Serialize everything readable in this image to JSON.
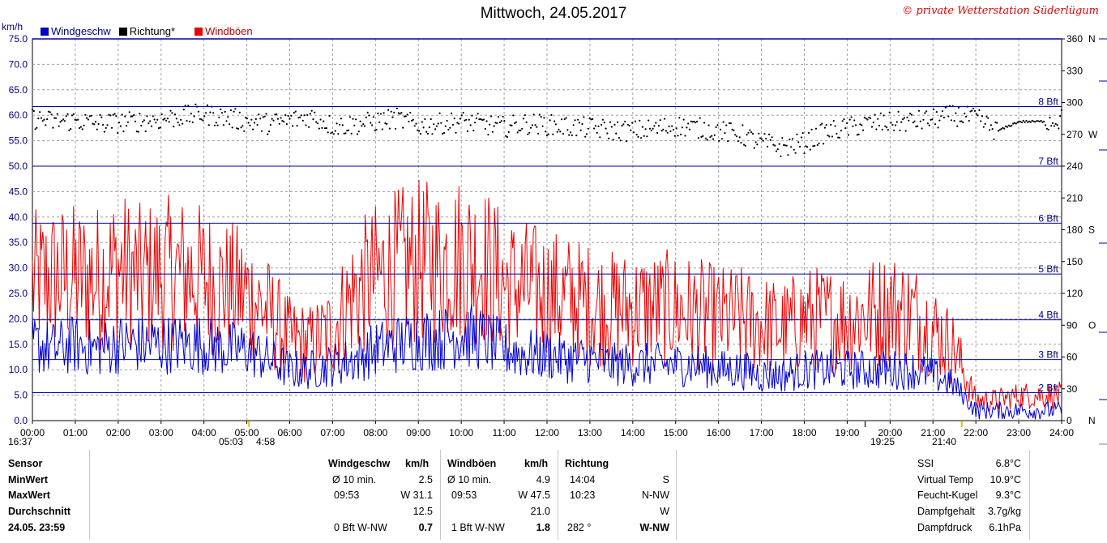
{
  "header": {
    "title": "Mittwoch, 24.05.2017",
    "copyright": "© private Wetterstation Süderlügum",
    "unit_label": "km/h"
  },
  "legend": {
    "wind": "Windgeschw",
    "direction": "Richtung*",
    "gusts": "Windböen"
  },
  "colors": {
    "wind": "#0000cc",
    "gusts": "#ee0000",
    "direction": "#000000",
    "grid_line": "#0000aa",
    "grid_dash": "#a0a0a0"
  },
  "chart_data": {
    "type": "line",
    "xlabel": "",
    "ylabel": "km/h",
    "ylim": [
      0,
      75
    ],
    "y_ticks": [
      "0.0",
      "5.0",
      "10.0",
      "15.0",
      "20.0",
      "25.0",
      "30.0",
      "35.0",
      "40.0",
      "45.0",
      "50.0",
      "55.0",
      "60.0",
      "65.0",
      "70.0",
      "75.0"
    ],
    "x_ticks": [
      "00:00",
      "01:00",
      "02:00",
      "03:00",
      "04:00",
      "05:00",
      "06:00",
      "07:00",
      "08:00",
      "09:00",
      "10:00",
      "11:00",
      "12:00",
      "13:00",
      "14:00",
      "15:00",
      "16:00",
      "17:00",
      "18:00",
      "19:00",
      "20:00",
      "21:00",
      "22:00",
      "23:00",
      "24:00"
    ],
    "right_axis": {
      "ylim": [
        0,
        360
      ],
      "ticks": [
        {
          "value": 0,
          "label": "0"
        },
        {
          "value": 30,
          "label": "30"
        },
        {
          "value": 60,
          "label": "60"
        },
        {
          "value": 90,
          "label": "90"
        },
        {
          "value": 120,
          "label": "120"
        },
        {
          "value": 150,
          "label": "150"
        },
        {
          "value": 180,
          "label": "180"
        },
        {
          "value": 210,
          "label": "210"
        },
        {
          "value": 240,
          "label": "240"
        },
        {
          "value": 270,
          "label": "270"
        },
        {
          "value": 300,
          "label": "300"
        },
        {
          "value": 330,
          "label": "330"
        },
        {
          "value": 360,
          "label": "360"
        }
      ],
      "compass": [
        {
          "value": 0,
          "label": "N"
        },
        {
          "value": 90,
          "label": "O"
        },
        {
          "value": 180,
          "label": "S"
        },
        {
          "value": 270,
          "label": "W"
        },
        {
          "value": 360,
          "label": "N"
        }
      ]
    },
    "beaufort_lines": [
      {
        "label": "2 Bft",
        "kmh": 5.5
      },
      {
        "label": "3 Bft",
        "kmh": 12.0
      },
      {
        "label": "4 Bft",
        "kmh": 19.8
      },
      {
        "label": "5 Bft",
        "kmh": 28.8
      },
      {
        "label": "6 Bft",
        "kmh": 38.8
      },
      {
        "label": "7 Bft",
        "kmh": 50.0
      },
      {
        "label": "8 Bft",
        "kmh": 61.7
      }
    ],
    "series": [
      {
        "name": "Windgeschw",
        "x": [
          0,
          0.5,
          1,
          1.5,
          2,
          2.5,
          3,
          3.5,
          4,
          4.5,
          5,
          5.5,
          6,
          6.5,
          7,
          7.5,
          8,
          8.5,
          9,
          9.5,
          10,
          10.5,
          11,
          11.5,
          12,
          12.5,
          13,
          13.5,
          14,
          14.5,
          15,
          15.5,
          16,
          16.5,
          17,
          17.5,
          18,
          18.5,
          19,
          19.5,
          20,
          20.5,
          21,
          21.5,
          22,
          22.5,
          23,
          23.5,
          24
        ],
        "values": [
          15,
          14,
          15,
          14,
          15,
          15,
          15,
          15,
          15,
          14,
          14,
          12,
          10,
          10,
          11,
          12,
          14,
          15,
          16,
          16,
          17,
          16,
          14,
          13,
          13,
          12,
          12,
          11,
          11,
          11,
          11,
          11,
          10,
          10,
          9,
          9,
          10,
          10,
          10,
          10,
          10,
          10,
          9,
          7,
          2,
          2,
          2,
          2,
          2
        ]
      },
      {
        "name": "Windböen",
        "x": [
          0,
          0.5,
          1,
          1.5,
          2,
          2.5,
          3,
          3.5,
          4,
          4.5,
          5,
          5.5,
          6,
          6.5,
          7,
          7.5,
          8,
          8.5,
          9,
          9.5,
          10,
          10.5,
          11,
          11.5,
          12,
          12.5,
          13,
          13.5,
          14,
          14.5,
          15,
          15.5,
          16,
          16.5,
          17,
          17.5,
          18,
          18.5,
          19,
          19.5,
          20,
          20.5,
          21,
          21.5,
          22,
          22.5,
          23,
          23.5,
          24
        ],
        "values": [
          27,
          28,
          28,
          28,
          30,
          28,
          29,
          29,
          28,
          26,
          25,
          21,
          16,
          15,
          18,
          25,
          28,
          30,
          31,
          31,
          32,
          31,
          27,
          26,
          25,
          24,
          23,
          22,
          22,
          22,
          22,
          21,
          20,
          20,
          19,
          18,
          20,
          20,
          20,
          21,
          22,
          21,
          18,
          14,
          4,
          4,
          5,
          5,
          5
        ]
      },
      {
        "name": "Richtung*",
        "axis": "right",
        "x": [
          0,
          0.5,
          1,
          1.5,
          2,
          2.5,
          3,
          3.5,
          4,
          4.5,
          5,
          5.5,
          6,
          6.5,
          7,
          7.5,
          8,
          8.5,
          9,
          9.5,
          10,
          10.5,
          11,
          11.5,
          12,
          12.5,
          13,
          13.5,
          14,
          14.5,
          15,
          15.5,
          16,
          16.5,
          17,
          17.5,
          18,
          18.5,
          19,
          19.5,
          20,
          20.5,
          21,
          21.5,
          22,
          22.5,
          23,
          23.5,
          24
        ],
        "values": [
          285,
          282,
          283,
          280,
          281,
          282,
          284,
          287,
          289,
          286,
          282,
          280,
          283,
          287,
          278,
          279,
          282,
          285,
          278,
          280,
          282,
          279,
          277,
          280,
          279,
          277,
          276,
          274,
          273,
          275,
          278,
          276,
          273,
          270,
          262,
          258,
          262,
          272,
          276,
          280,
          281,
          282,
          284,
          288,
          285,
          273,
          282,
          282,
          284
        ]
      }
    ],
    "annotations": [
      {
        "text": "16:37"
      },
      {
        "text": "05:03"
      },
      {
        "text": "4:58"
      },
      {
        "text": "19:25"
      },
      {
        "text": "21:40"
      }
    ]
  },
  "stats": {
    "col_sensor": {
      "header": "Sensor",
      "rows": [
        "MinWert",
        "MaxWert",
        "Durchschnitt",
        "24.05. 23:59"
      ]
    },
    "wind": {
      "header": "Windgeschw",
      "unit": "km/h",
      "min_label": "Ø 10 min.",
      "min_value": "2.5",
      "max_time": "09:53",
      "max_value": "W 31.1",
      "avg": "12.5",
      "last_desc": "0 Bft W-NW",
      "last_value": "0.7"
    },
    "gust": {
      "header": "Windböen",
      "unit": "km/h",
      "min_label": "Ø 10 min.",
      "min_value": "4.9",
      "max_time": "09:53",
      "max_value": "W 47.5",
      "avg": "21.0",
      "last_desc": "1 Bft W-NW",
      "last_value": "1.8"
    },
    "direction": {
      "header": "Richtung",
      "min_time": "14:04",
      "min_value": "S",
      "max_time": "10:23",
      "max_value": "N-NW",
      "avg": "W",
      "last_deg": "282 °",
      "last_value": "W-NW"
    },
    "extra": [
      {
        "label": "SSI",
        "value": "6.8°C"
      },
      {
        "label": "Virtual Temp",
        "value": "10.9°C"
      },
      {
        "label": "Feucht-Kugel",
        "value": "9.3°C"
      },
      {
        "label": "Dampfgehalt",
        "value": "3.7g/kg"
      },
      {
        "label": "Dampfdruck",
        "value": "6.1hPa"
      }
    ]
  }
}
